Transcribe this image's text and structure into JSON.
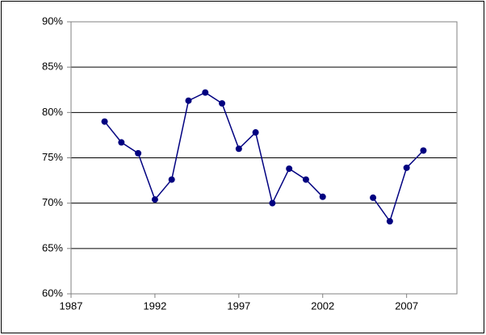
{
  "chart_data": {
    "type": "line",
    "x": [
      1989,
      1990,
      1991,
      1992,
      1993,
      1994,
      1995,
      1996,
      1997,
      1998,
      1999,
      2000,
      2001,
      2002,
      2003,
      2004,
      2005,
      2006,
      2007,
      2008
    ],
    "series": [
      {
        "color": "#000080",
        "values": [
          79.0,
          76.7,
          75.5,
          70.4,
          72.6,
          81.3,
          82.2,
          81.0,
          76.0,
          77.8,
          70.0,
          73.8,
          72.6,
          70.7,
          null,
          null,
          70.6,
          68.0,
          73.9,
          75.8
        ]
      }
    ],
    "xlim": [
      1987,
      2010
    ],
    "xticks": [
      1987,
      1992,
      1997,
      2002,
      2007
    ],
    "ylim": [
      60,
      90
    ],
    "yticks": [
      {
        "value": 60,
        "label": "60%"
      },
      {
        "value": 65,
        "label": "65%"
      },
      {
        "value": 70,
        "label": "70%"
      },
      {
        "value": 75,
        "label": "75%"
      },
      {
        "value": 80,
        "label": "80%"
      },
      {
        "value": 85,
        "label": "85%"
      },
      {
        "value": 90,
        "label": "90%"
      }
    ],
    "grid": true
  }
}
